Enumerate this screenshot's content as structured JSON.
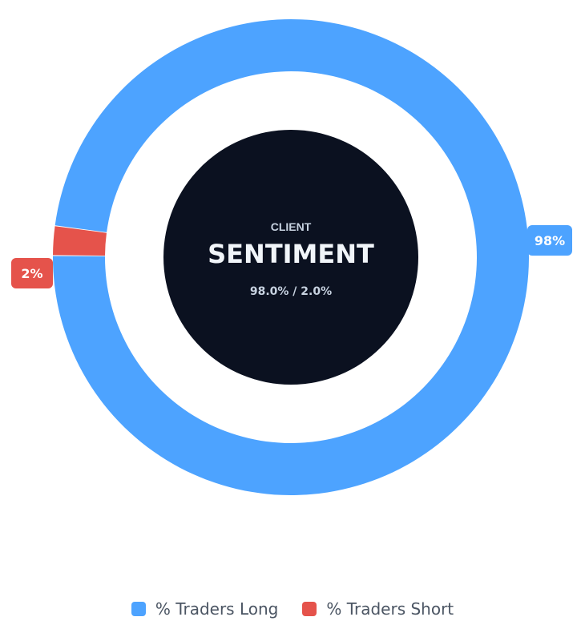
{
  "chart_data": {
    "type": "doughnut",
    "center": {
      "eyebrow": "CLIENT",
      "title": "SENTIMENT",
      "subtitle": "98.0% / 2.0%"
    },
    "series": [
      {
        "name": "% Traders Long",
        "value": 98,
        "label": "98%",
        "color": "#4da3ff"
      },
      {
        "name": "% Traders Short",
        "value": 2,
        "label": "2%",
        "color": "#e5534b"
      }
    ],
    "legend_position": "bottom"
  },
  "colors": {
    "center_fill": "#0b1120",
    "center_eyebrow": "#c7d2e0",
    "center_title": "#f1f5f9",
    "center_subtitle": "#c7d2e0"
  }
}
